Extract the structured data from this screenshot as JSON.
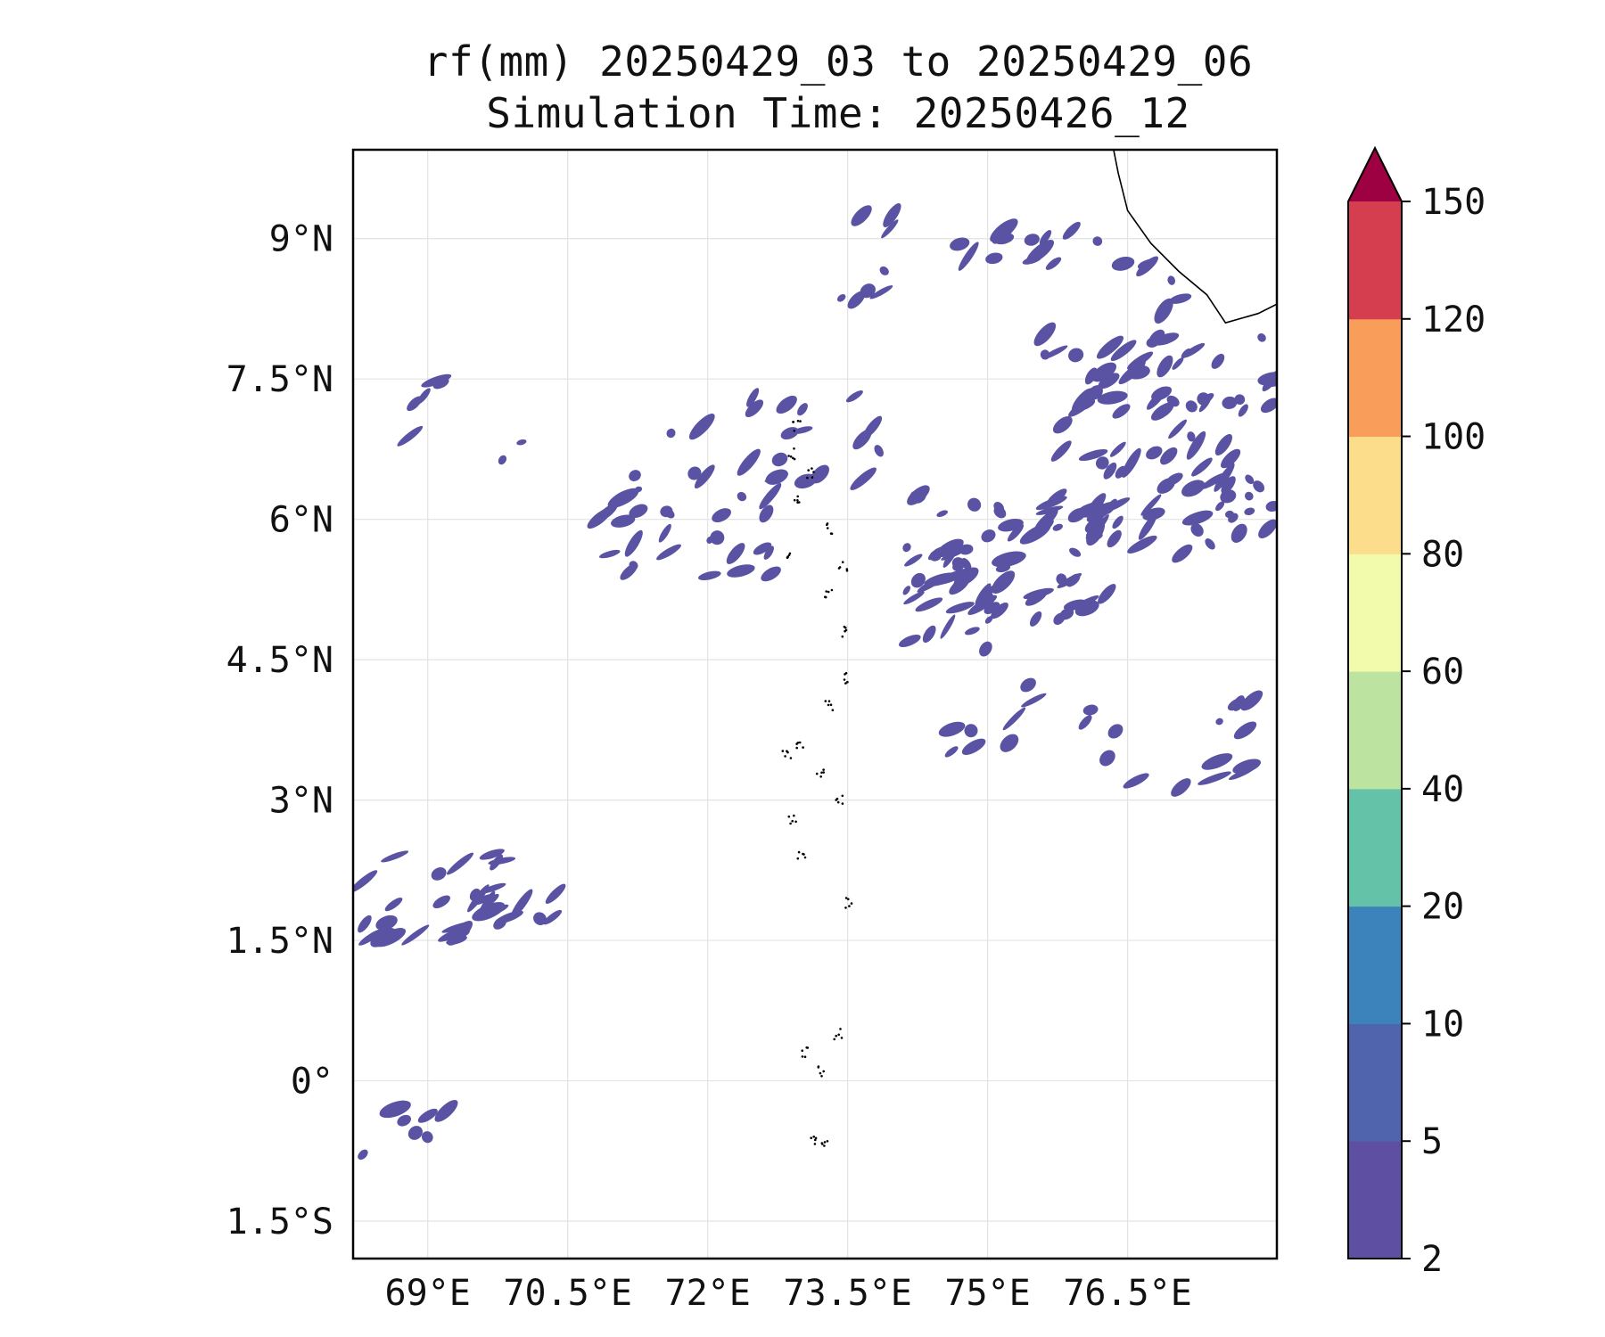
{
  "title": {
    "line1": "rf(mm) 20250429_03 to 20250429_06",
    "line2": "Simulation Time: 20250426_12"
  },
  "map": {
    "lon_range": [
      68.2,
      78.1
    ],
    "lat_range": [
      -1.9,
      9.95
    ],
    "lon_ticks": [
      {
        "value": 69,
        "label": "69°E"
      },
      {
        "value": 70.5,
        "label": "70.5°E"
      },
      {
        "value": 72,
        "label": "72°E"
      },
      {
        "value": 73.5,
        "label": "73.5°E"
      },
      {
        "value": 75,
        "label": "75°E"
      },
      {
        "value": 76.5,
        "label": "76.5°E"
      }
    ],
    "lat_ticks": [
      {
        "value": 9,
        "label": "9°N"
      },
      {
        "value": 7.5,
        "label": "7.5°N"
      },
      {
        "value": 6,
        "label": "6°N"
      },
      {
        "value": 4.5,
        "label": "4.5°N"
      },
      {
        "value": 3,
        "label": "3°N"
      },
      {
        "value": 1.5,
        "label": "1.5°N"
      },
      {
        "value": 0,
        "label": "0°"
      },
      {
        "value": -1.5,
        "label": "1.5°S"
      }
    ],
    "grid": true,
    "rain_color": "#5a52a3",
    "coastline_color": "#000000"
  },
  "colorbar": {
    "levels": [
      "2",
      "5",
      "10",
      "20",
      "40",
      "60",
      "80",
      "100",
      "120",
      "150"
    ],
    "colors": [
      "#5e4fa2",
      "#4f64ad",
      "#3c83bc",
      "#63c2a8",
      "#bde3a1",
      "#f2faab",
      "#fbdd8b",
      "#f99e5a",
      "#d53e4e"
    ],
    "extend_color": "#9e0142",
    "extend": "max"
  }
}
